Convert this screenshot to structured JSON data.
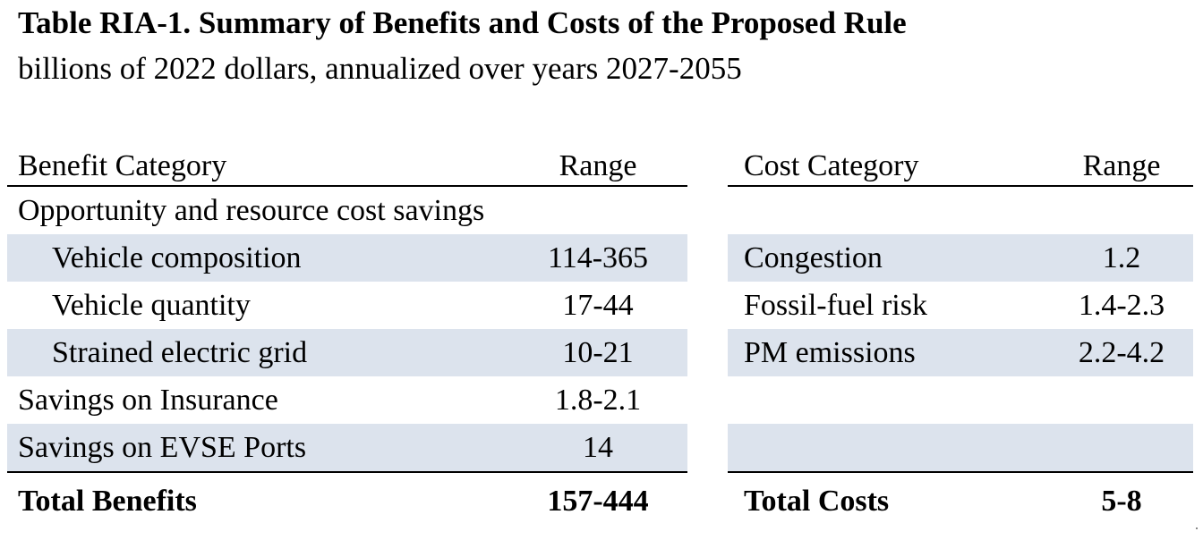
{
  "title": "Table RIA-1.  Summary of Benefits and Costs of the Proposed Rule",
  "subtitle": "billions of 2022 dollars, annualized over years 2027-2055",
  "benefits": {
    "header": {
      "category": "Benefit Category",
      "range": "Range"
    },
    "rows": [
      {
        "category": "Opportunity and resource cost savings",
        "range": ""
      },
      {
        "category": "Vehicle composition",
        "range": "114-365"
      },
      {
        "category": "Vehicle quantity",
        "range": "17-44"
      },
      {
        "category": "Strained electric grid",
        "range": "10-21"
      },
      {
        "category": "Savings on Insurance",
        "range": "1.8-2.1"
      },
      {
        "category": "Savings on EVSE Ports",
        "range": "14"
      }
    ],
    "total": {
      "category": "Total Benefits",
      "range": "157-444"
    }
  },
  "costs": {
    "header": {
      "category": "Cost Category",
      "range": "Range"
    },
    "rows": [
      {
        "category": "",
        "range": ""
      },
      {
        "category": "Congestion",
        "range": "1.2"
      },
      {
        "category": "Fossil-fuel risk",
        "range": "1.4-2.3"
      },
      {
        "category": "PM emissions",
        "range": "2.2-4.2"
      },
      {
        "category": "",
        "range": ""
      },
      {
        "category": "",
        "range": ""
      }
    ],
    "total": {
      "category": "Total Costs",
      "range": "5-8"
    }
  },
  "colors": {
    "row_shade": "#dce3ed",
    "rule": "#000000"
  }
}
